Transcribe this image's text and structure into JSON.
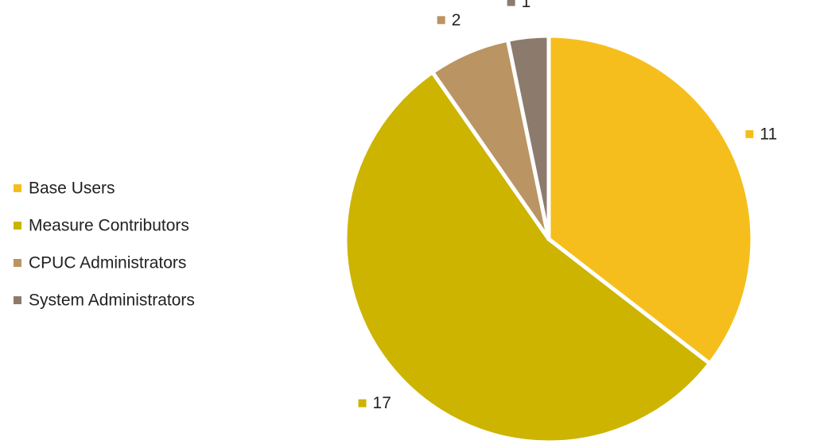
{
  "chart_data": {
    "type": "pie",
    "categories": [
      "Base Users",
      "Measure Contributors",
      "CPUC Administrators",
      "System Administrators"
    ],
    "values": [
      11,
      17,
      2,
      1
    ],
    "colors": [
      "#f6be1c",
      "#cdb400",
      "#ba9462",
      "#8c7b6d"
    ],
    "legend": "left"
  }
}
